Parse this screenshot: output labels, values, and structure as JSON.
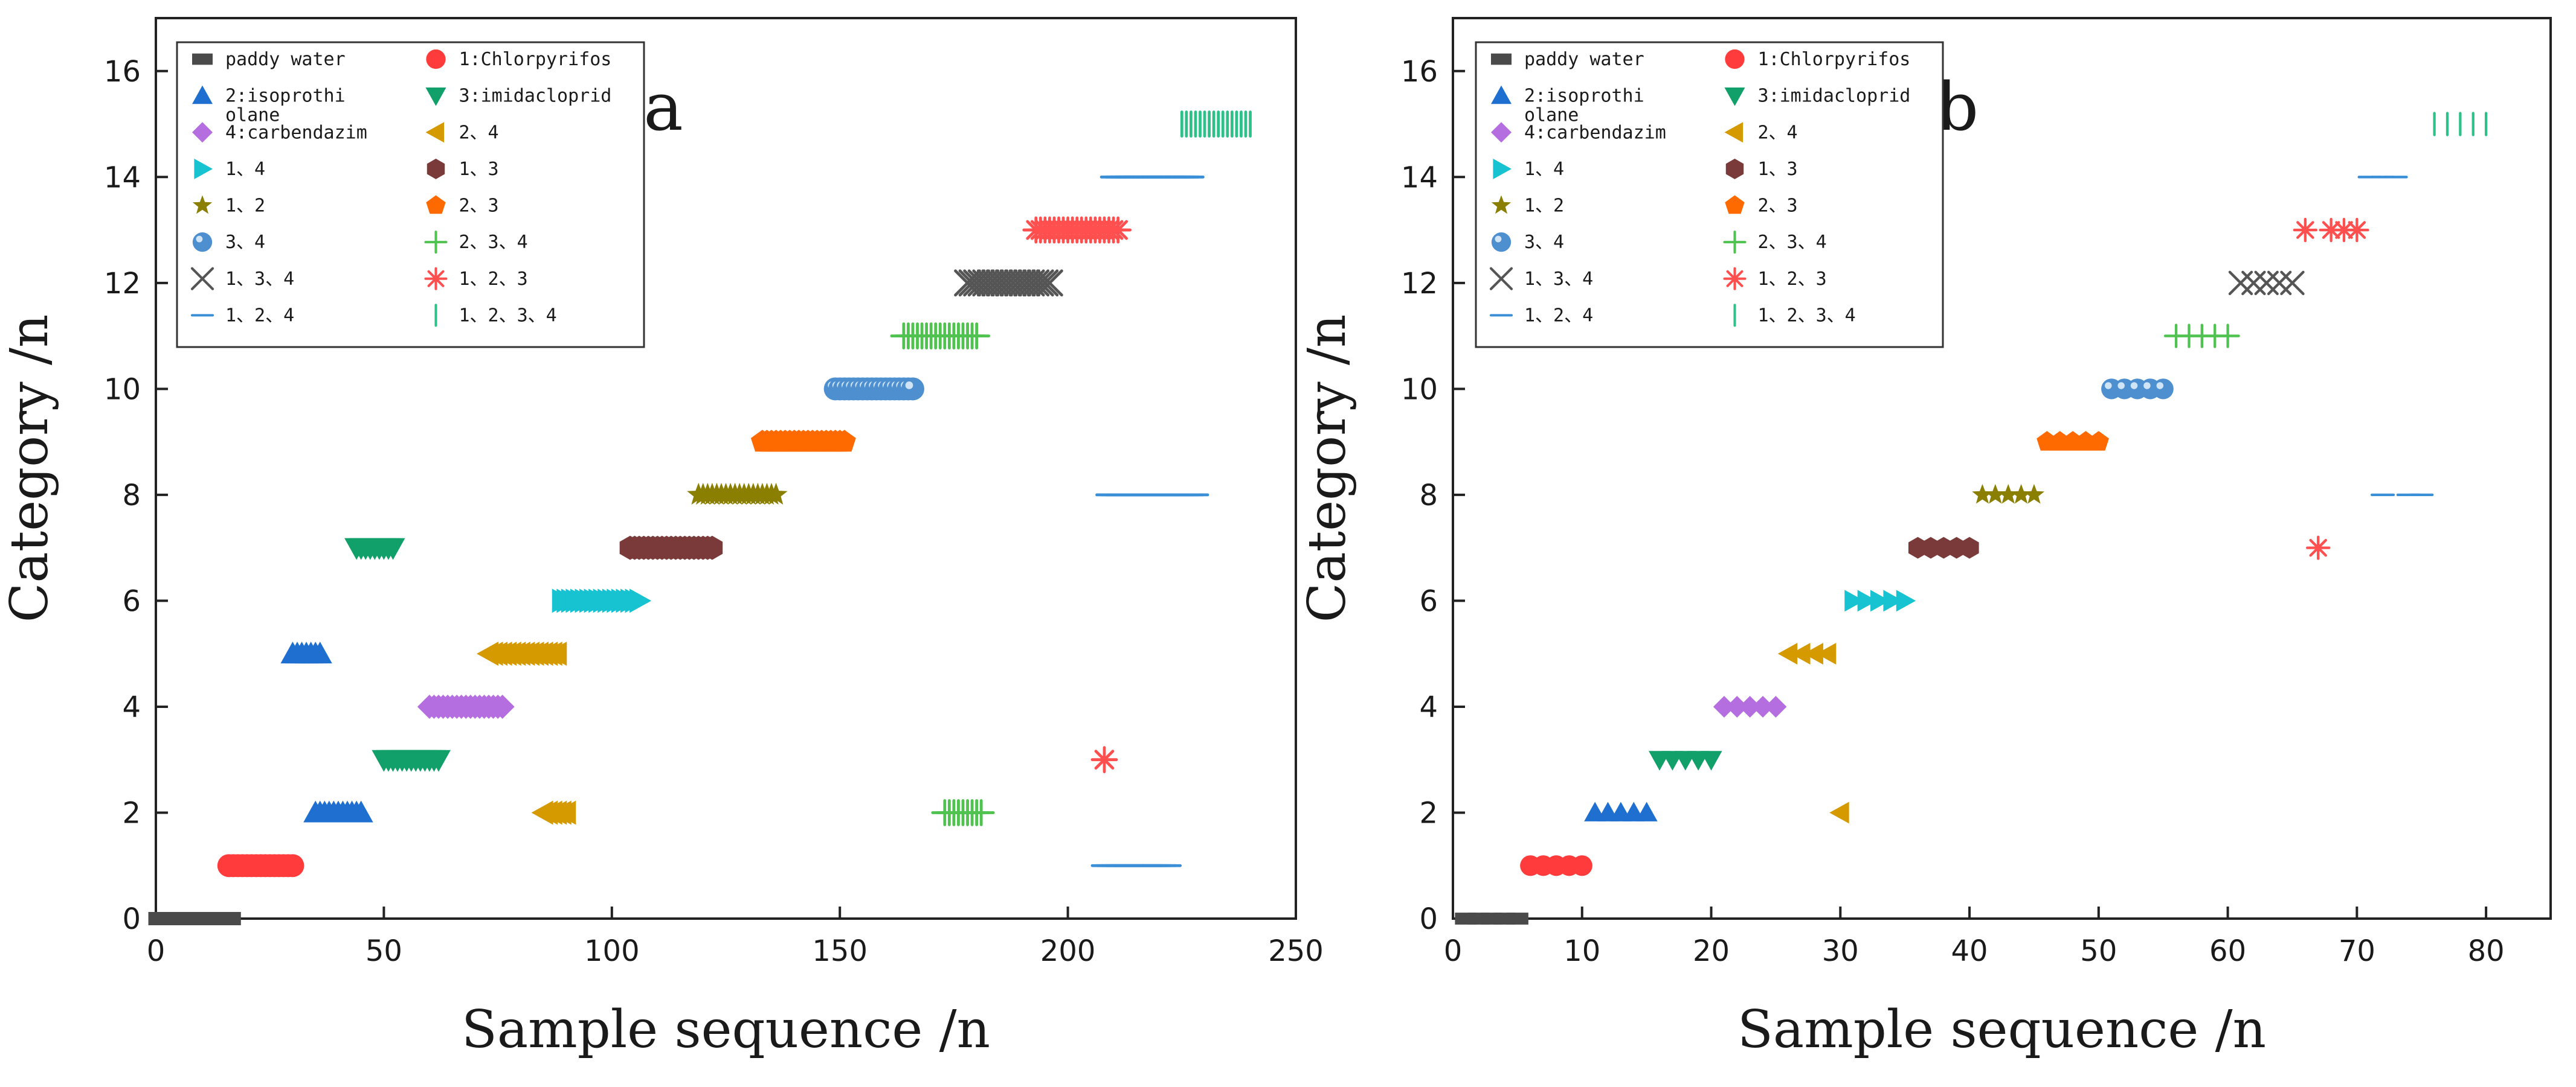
{
  "chart_data": [
    {
      "type": "scatter",
      "panel_label": "a",
      "xlabel": "Sample sequence /n",
      "ylabel": "Category /n",
      "xlim": [
        0,
        250
      ],
      "ylim": [
        0,
        17
      ],
      "xticks": [
        "0",
        "50",
        "100",
        "150",
        "200",
        "250"
      ],
      "yticks": [
        "0",
        "2",
        "4",
        "6",
        "8",
        "10",
        "12",
        "14",
        "16"
      ],
      "legend_position": "top-left",
      "series": [
        {
          "name": "paddy water",
          "category": 0,
          "marker": "square",
          "color": "#4a4a4a",
          "x": [
            1,
            16
          ]
        },
        {
          "name": "1:Chlorpyrifos",
          "category": 1,
          "marker": "circle",
          "color": "#ff3b3b",
          "x": [
            16,
            30
          ]
        },
        {
          "name": "2:isoprothiolane",
          "category": 2,
          "marker": "triangle-up",
          "color": "#1f6fd1",
          "x": [
            35,
            45
          ]
        },
        {
          "name": "2:isoprothiolane",
          "category": 5,
          "marker": "triangle-up",
          "color": "#1f6fd1",
          "x": [
            30,
            36
          ]
        },
        {
          "name": "3:imidacloprid",
          "category": 3,
          "marker": "triangle-down",
          "color": "#12a06a",
          "x": [
            50,
            62
          ]
        },
        {
          "name": "3:imidacloprid",
          "category": 7,
          "marker": "triangle-down",
          "color": "#12a06a",
          "x": [
            44,
            52
          ]
        },
        {
          "name": "4:carbendazim",
          "category": 4,
          "marker": "diamond",
          "color": "#b46ee0",
          "x": [
            60,
            76
          ]
        },
        {
          "name": "2、4",
          "category": 5,
          "marker": "triangle-left",
          "color": "#d49a00",
          "x": [
            73,
            88
          ]
        },
        {
          "name": "2、4",
          "category": 2,
          "marker": "triangle-left",
          "color": "#d49a00",
          "x": [
            85,
            90
          ]
        },
        {
          "name": "1、4",
          "category": 6,
          "marker": "triangle-right",
          "color": "#17c2d1",
          "x": [
            89,
            106
          ]
        },
        {
          "name": "1、3",
          "category": 7,
          "marker": "hexagon",
          "color": "#7a3a3a",
          "x": [
            104,
            122
          ]
        },
        {
          "name": "1、2",
          "category": 8,
          "marker": "star",
          "color": "#8a7f00",
          "x": [
            119,
            136
          ]
        },
        {
          "name": "2、3",
          "category": 9,
          "marker": "pentagon",
          "color": "#ff6a00",
          "x": [
            133,
            151
          ]
        },
        {
          "name": "3、4",
          "category": 10,
          "marker": "sphere",
          "color": "#4e8fd0",
          "x": [
            149,
            166
          ]
        },
        {
          "name": "2、3、4",
          "category": 11,
          "marker": "plus",
          "color": "#4fc24f",
          "x": [
            164,
            180
          ]
        },
        {
          "name": "2、3、4",
          "category": 2,
          "marker": "plus",
          "color": "#4fc24f",
          "x": [
            173,
            181
          ]
        },
        {
          "name": "1、3、4",
          "category": 12,
          "marker": "x",
          "color": "#555555",
          "x": [
            178,
            196
          ]
        },
        {
          "name": "1、2、3",
          "category": 13,
          "marker": "asterisk",
          "color": "#ff4f4f",
          "x": [
            193,
            211
          ]
        },
        {
          "name": "1、2、3",
          "category": 3,
          "marker": "asterisk",
          "color": "#ff4f4f",
          "x": [
            208,
            208
          ]
        },
        {
          "name": "1、2、4",
          "category": 14,
          "marker": "hline",
          "color": "#3a8fd6",
          "x": [
            210,
            227
          ]
        },
        {
          "name": "1、2、4",
          "category": 8,
          "marker": "hline",
          "color": "#3a8fd6",
          "x": [
            209,
            228
          ]
        },
        {
          "name": "1、2、4",
          "category": 1,
          "marker": "hline",
          "color": "#3a8fd6",
          "x": [
            208,
            222
          ]
        },
        {
          "name": "1、2、3、4",
          "category": 15,
          "marker": "vline",
          "color": "#2fc08a",
          "x": [
            225,
            240
          ]
        }
      ]
    },
    {
      "type": "scatter",
      "panel_label": "b",
      "xlabel": "Sample sequence /n",
      "ylabel": "Category /n",
      "xlim": [
        0,
        85
      ],
      "ylim": [
        0,
        17
      ],
      "xticks": [
        "0",
        "10",
        "20",
        "30",
        "40",
        "50",
        "60",
        "70",
        "80"
      ],
      "yticks": [
        "0",
        "2",
        "4",
        "6",
        "8",
        "10",
        "12",
        "14",
        "16"
      ],
      "legend_position": "top-left",
      "series": [
        {
          "name": "paddy water",
          "category": 0,
          "marker": "square",
          "color": "#4a4a4a",
          "x": [
            1,
            2,
            3,
            4,
            5
          ]
        },
        {
          "name": "1:Chlorpyrifos",
          "category": 1,
          "marker": "circle",
          "color": "#ff3b3b",
          "x": [
            6,
            7,
            8,
            9,
            10
          ]
        },
        {
          "name": "2:isoprothiolane",
          "category": 2,
          "marker": "triangle-up",
          "color": "#1f6fd1",
          "x": [
            11,
            12,
            13,
            14,
            15
          ]
        },
        {
          "name": "3:imidacloprid",
          "category": 3,
          "marker": "triangle-down",
          "color": "#12a06a",
          "x": [
            16,
            17,
            18,
            19,
            20
          ]
        },
        {
          "name": "4:carbendazim",
          "category": 4,
          "marker": "diamond",
          "color": "#b46ee0",
          "x": [
            21,
            22,
            23,
            24,
            25
          ]
        },
        {
          "name": "2、4",
          "category": 5,
          "marker": "triangle-left",
          "color": "#d49a00",
          "x": [
            26,
            27,
            28,
            29
          ]
        },
        {
          "name": "2、4",
          "category": 2,
          "marker": "triangle-left",
          "color": "#d49a00",
          "x": [
            30
          ]
        },
        {
          "name": "1、4",
          "category": 6,
          "marker": "triangle-right",
          "color": "#17c2d1",
          "x": [
            31,
            32,
            33,
            34,
            35
          ]
        },
        {
          "name": "1、3",
          "category": 7,
          "marker": "hexagon",
          "color": "#7a3a3a",
          "x": [
            36,
            37,
            38,
            39,
            40
          ]
        },
        {
          "name": "1、2",
          "category": 8,
          "marker": "star",
          "color": "#8a7f00",
          "x": [
            41,
            42,
            43,
            44,
            45
          ]
        },
        {
          "name": "2、3",
          "category": 9,
          "marker": "pentagon",
          "color": "#ff6a00",
          "x": [
            46,
            47,
            48,
            49,
            50
          ]
        },
        {
          "name": "3、4",
          "category": 10,
          "marker": "sphere",
          "color": "#4e8fd0",
          "x": [
            51,
            52,
            53,
            54,
            55
          ]
        },
        {
          "name": "2、3、4",
          "category": 11,
          "marker": "plus",
          "color": "#4fc24f",
          "x": [
            56,
            57,
            58,
            59,
            60
          ]
        },
        {
          "name": "1、3、4",
          "category": 12,
          "marker": "x",
          "color": "#555555",
          "x": [
            61,
            62,
            63,
            64,
            65
          ]
        },
        {
          "name": "1、2、3",
          "category": 13,
          "marker": "asterisk",
          "color": "#ff4f4f",
          "x": [
            66,
            68,
            69,
            70
          ]
        },
        {
          "name": "1、2、3",
          "category": 7,
          "marker": "asterisk",
          "color": "#ff4f4f",
          "x": [
            67
          ]
        },
        {
          "name": "1、2、4",
          "category": 14,
          "marker": "hline",
          "color": "#3a8fd6",
          "x": [
            71,
            72,
            73
          ]
        },
        {
          "name": "1、2、4",
          "category": 8,
          "marker": "hline",
          "color": "#3a8fd6",
          "x": [
            72,
            74,
            75
          ]
        },
        {
          "name": "1、2、3、4",
          "category": 15,
          "marker": "vline",
          "color": "#2fc08a",
          "x": [
            76,
            77,
            78,
            79,
            80
          ]
        }
      ]
    }
  ],
  "legend_items": [
    {
      "label": "paddy water",
      "marker": "square",
      "color": "#4a4a4a"
    },
    {
      "label": "1:Chlorpyrifos",
      "marker": "circle",
      "color": "#ff3b3b"
    },
    {
      "label": "2:isoprothi\nolane",
      "marker": "triangle-up",
      "color": "#1f6fd1"
    },
    {
      "label": "3:imidacloprid",
      "marker": "triangle-down",
      "color": "#12a06a"
    },
    {
      "label": "4:carbendazim",
      "marker": "diamond",
      "color": "#b46ee0"
    },
    {
      "label": "2、4",
      "marker": "triangle-left",
      "color": "#d49a00"
    },
    {
      "label": "1、4",
      "marker": "triangle-right",
      "color": "#17c2d1"
    },
    {
      "label": "1、3",
      "marker": "hexagon",
      "color": "#7a3a3a"
    },
    {
      "label": "1、2",
      "marker": "star",
      "color": "#8a7f00"
    },
    {
      "label": "2、3",
      "marker": "pentagon",
      "color": "#ff6a00"
    },
    {
      "label": "3、4",
      "marker": "sphere",
      "color": "#4e8fd0"
    },
    {
      "label": "2、3、4",
      "marker": "plus",
      "color": "#4fc24f"
    },
    {
      "label": "1、3、4",
      "marker": "x",
      "color": "#555555"
    },
    {
      "label": "1、2、3",
      "marker": "asterisk",
      "color": "#ff4f4f"
    },
    {
      "label": "1、2、4",
      "marker": "hline",
      "color": "#3a8fd6"
    },
    {
      "label": "1、2、3、4",
      "marker": "vline",
      "color": "#2fc08a"
    }
  ]
}
